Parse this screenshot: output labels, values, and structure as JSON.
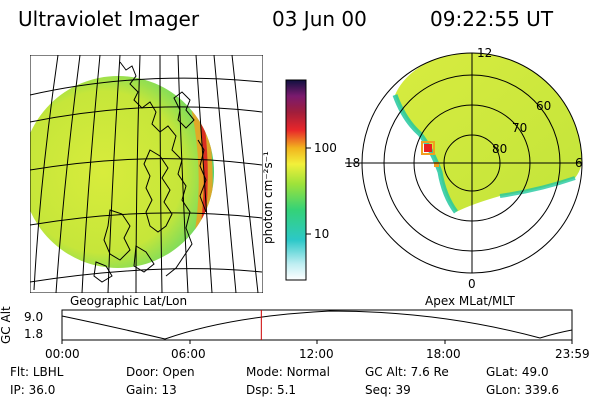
{
  "header": {
    "title": "Ultraviolet Imager",
    "date": "03 Jun 00",
    "time": "09:22:55 UT"
  },
  "colorbar": {
    "unit_label": "photon cm⁻²s⁻¹",
    "ticks": [
      "100",
      "10"
    ],
    "stops": [
      "#ffffff",
      "#aee8f0",
      "#2cc8c8",
      "#34d278",
      "#9ee23a",
      "#f2f03a",
      "#f2b41e",
      "#e8262a",
      "#a01e3c",
      "#7a1a6e",
      "#101040"
    ]
  },
  "left_view": {
    "caption": "Geographic Lat/Lon"
  },
  "right_view": {
    "caption": "Apex MLat/MLT",
    "mlt_labels": {
      "top": "12",
      "left": "18",
      "right": "6",
      "bottom": "0"
    },
    "mlat_labels": [
      "60",
      "70",
      "80"
    ]
  },
  "altitude_plot": {
    "ylabel": "GC Alt",
    "yticks": [
      "9.0",
      "1.8"
    ],
    "xticks": [
      "00:00",
      "06:00",
      "12:00",
      "18:00",
      "23:59"
    ],
    "current_time_hours": 9.38
  },
  "status": {
    "row1": [
      {
        "key": "Flt:",
        "value": "LBHL"
      },
      {
        "key": "Door:",
        "value": "Open"
      },
      {
        "key": "Mode:",
        "value": "Normal"
      },
      {
        "key": "GC Alt:",
        "value": "7.6 Re"
      },
      {
        "key": "GLat:",
        "value": "49.0"
      }
    ],
    "row2": [
      {
        "key": "IP:",
        "value": "36.0"
      },
      {
        "key": "Gain:",
        "value": "13"
      },
      {
        "key": "Dsp:",
        "value": "5.1"
      },
      {
        "key": "Seq:",
        "value": "39"
      },
      {
        "key": "GLon:",
        "value": "339.6"
      }
    ]
  },
  "colors": {
    "disk_fill": "#cfe838",
    "disk_edge": "#22c88c",
    "limb_glow": "#f0a020",
    "limb_core": "#d82020",
    "time_marker": "#cc0000"
  }
}
